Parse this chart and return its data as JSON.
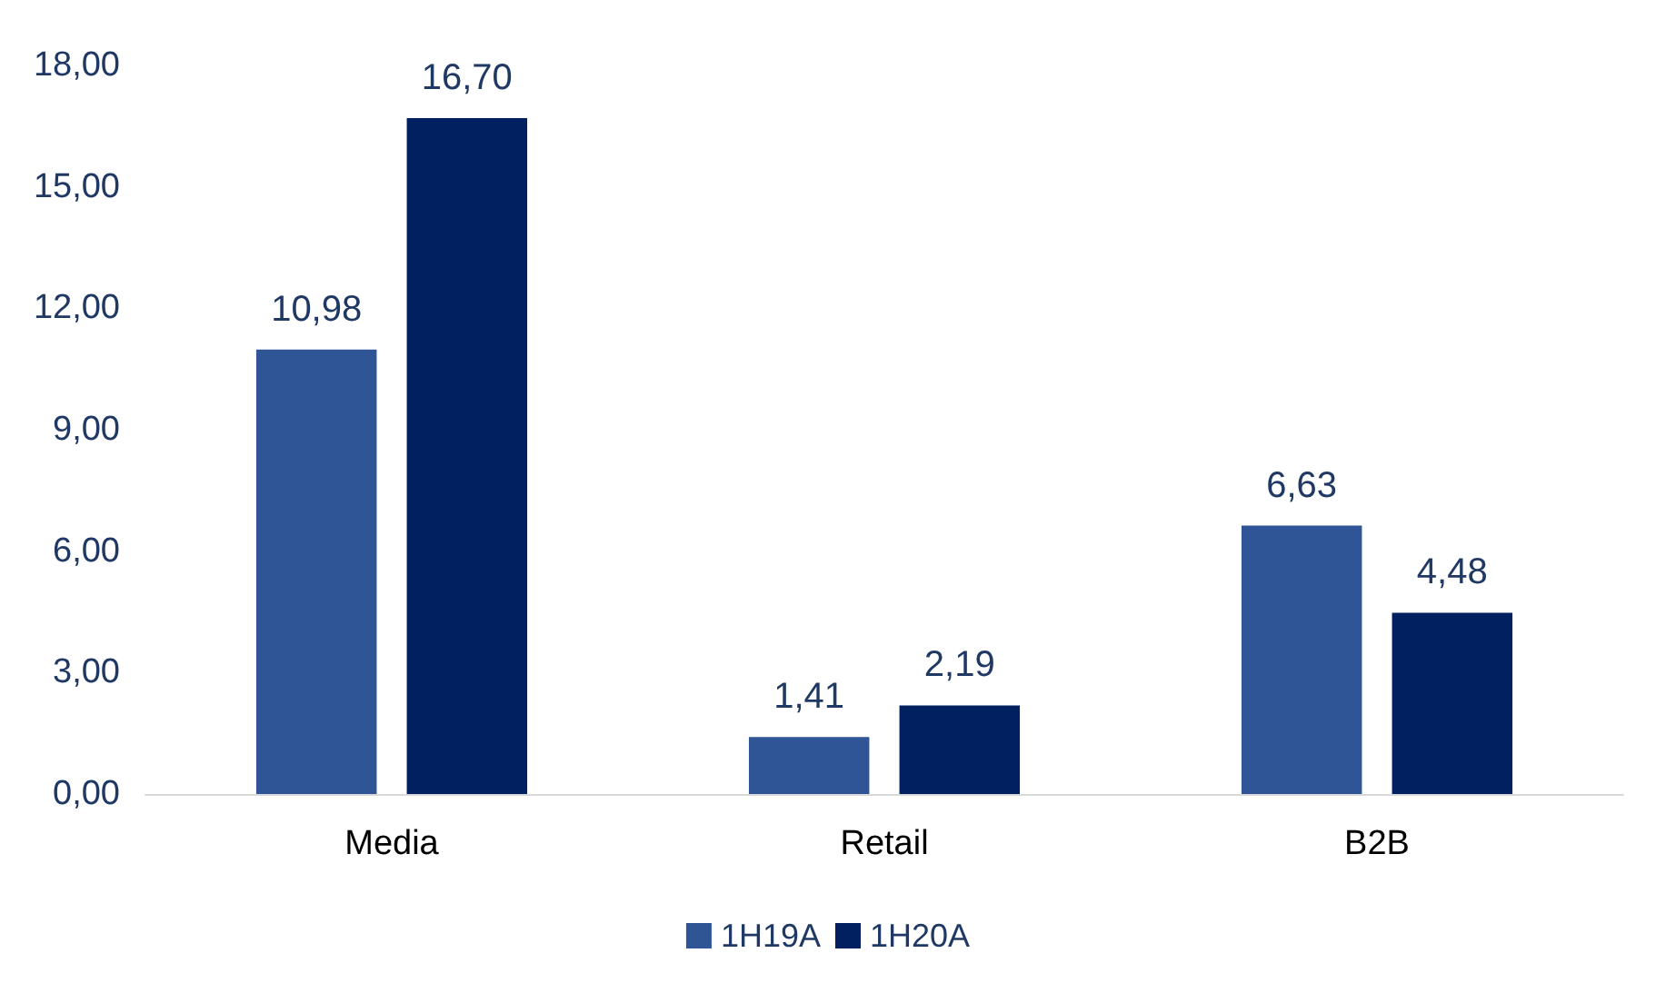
{
  "chart_data": {
    "type": "bar",
    "categories": [
      "Media",
      "Retail",
      "B2B"
    ],
    "series": [
      {
        "name": "1H19A",
        "color": "#2f5597",
        "values": [
          10.98,
          1.41,
          6.63
        ],
        "value_labels": [
          "10,98",
          "1,41",
          "6,63"
        ]
      },
      {
        "name": "1H20A",
        "color": "#002060",
        "values": [
          16.7,
          2.19,
          4.48
        ],
        "value_labels": [
          "16,70",
          "2,19",
          "4,48"
        ]
      }
    ],
    "ylim": [
      0,
      18
    ],
    "yticks": [
      {
        "value": 0,
        "label": "0,00"
      },
      {
        "value": 3,
        "label": "3,00"
      },
      {
        "value": 6,
        "label": "6,00"
      },
      {
        "value": 9,
        "label": "9,00"
      },
      {
        "value": 12,
        "label": "12,00"
      },
      {
        "value": 15,
        "label": "15,00"
      },
      {
        "value": 18,
        "label": "18,00"
      }
    ],
    "grid": false,
    "legend": "bottom"
  }
}
